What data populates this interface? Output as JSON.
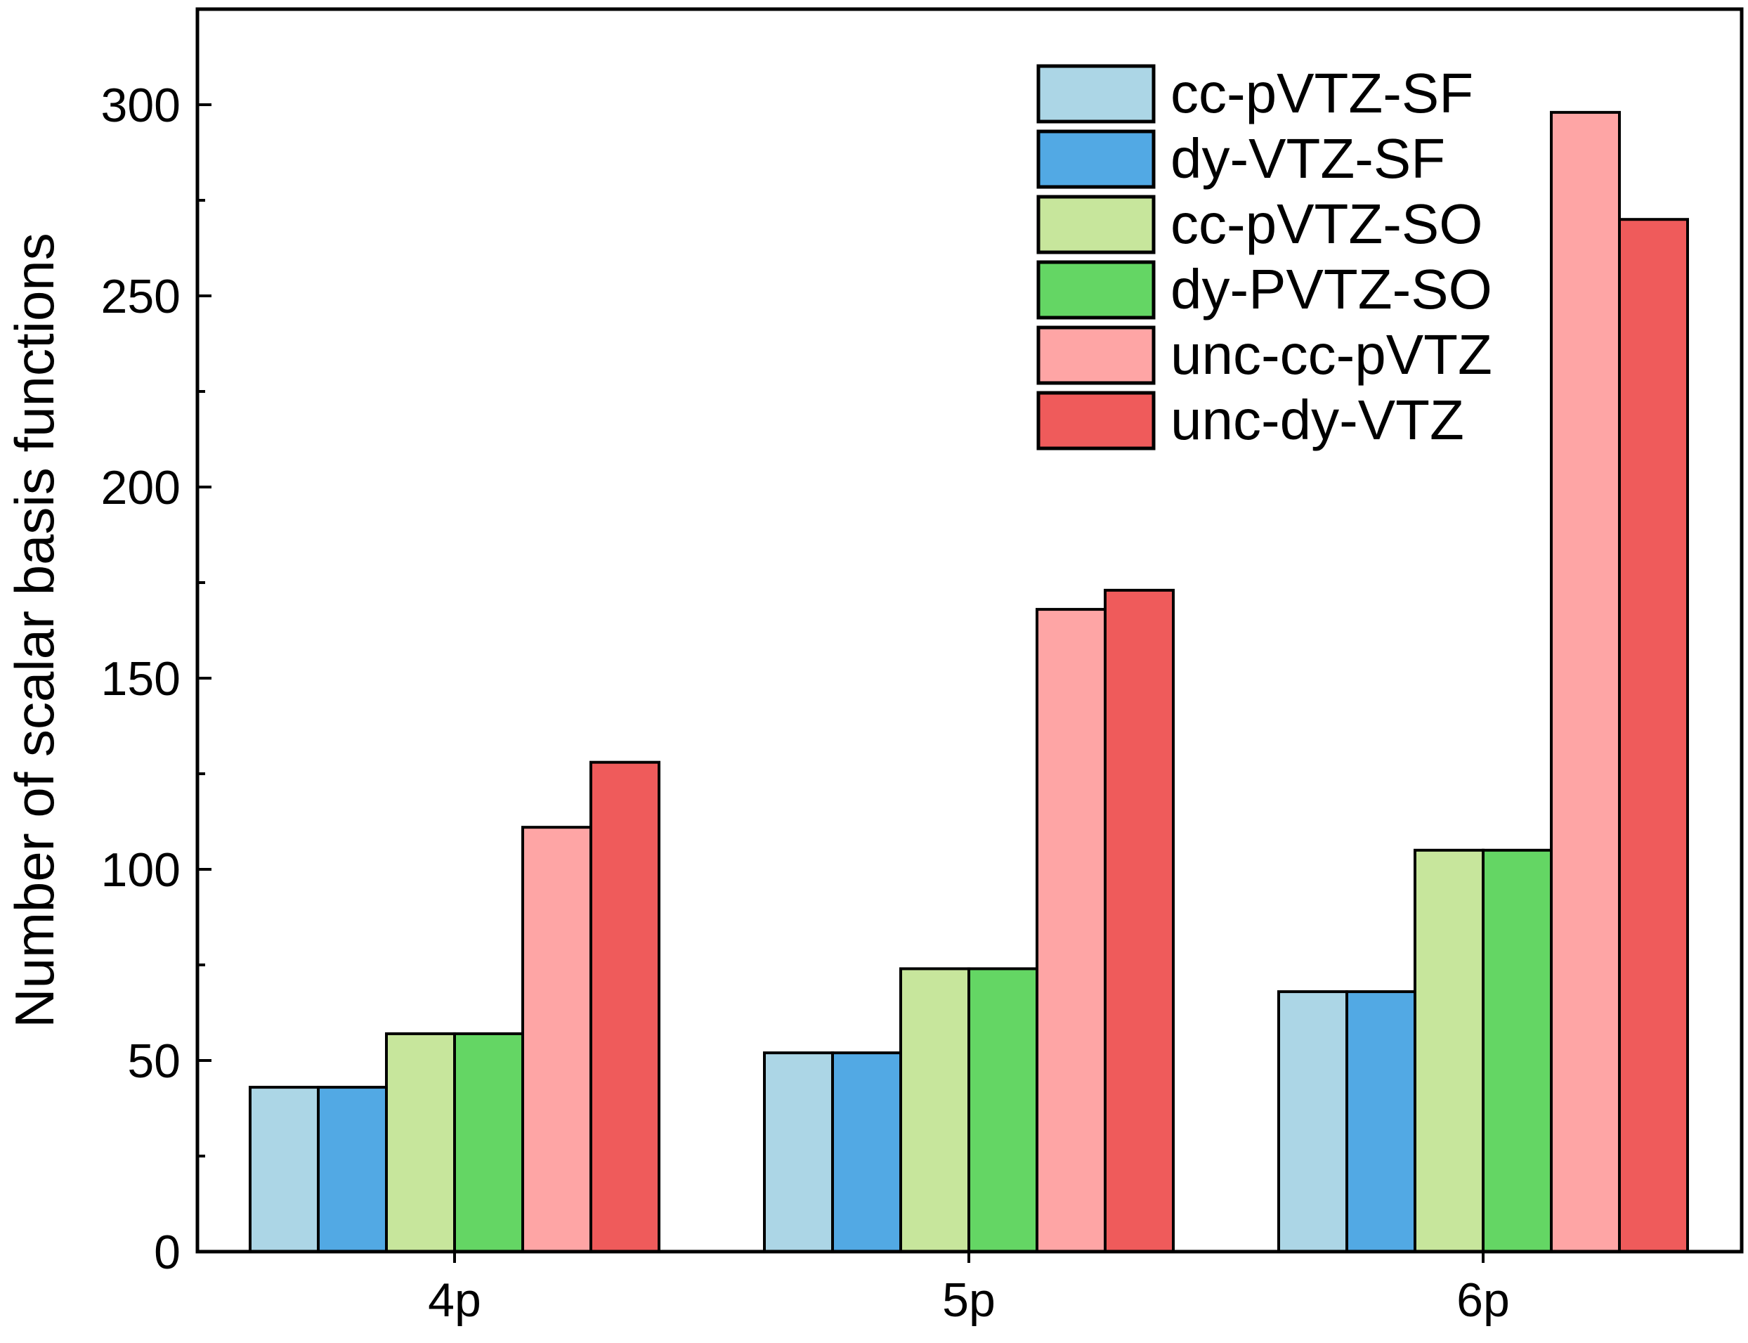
{
  "chart_data": {
    "type": "bar",
    "title": "",
    "xlabel": "",
    "ylabel": "Number of scalar basis functions",
    "categories": [
      "4p",
      "5p",
      "6p"
    ],
    "ylim": [
      0,
      325
    ],
    "yticks": [
      0,
      50,
      100,
      150,
      200,
      250,
      300
    ],
    "yticks_minor": [
      25,
      75,
      125,
      175,
      225,
      275
    ],
    "grid": false,
    "legend_position": "top-right",
    "series": [
      {
        "name": "cc-pVTZ-SF",
        "color": "#acd6e6",
        "values": [
          43,
          52,
          68
        ]
      },
      {
        "name": "dy-VTZ-SF",
        "color": "#52a9e4",
        "values": [
          43,
          52,
          68
        ]
      },
      {
        "name": "cc-pVTZ-SO",
        "color": "#c7e69c",
        "values": [
          57,
          74,
          105
        ]
      },
      {
        "name": "dy-PVTZ-SO",
        "color": "#64d664",
        "values": [
          57,
          74,
          105
        ]
      },
      {
        "name": "unc-cc-pVTZ",
        "color": "#fea5a5",
        "values": [
          111,
          168,
          298
        ]
      },
      {
        "name": "unc-dy-VTZ",
        "color": "#ef5b5b",
        "values": [
          128,
          173,
          270
        ]
      }
    ]
  }
}
